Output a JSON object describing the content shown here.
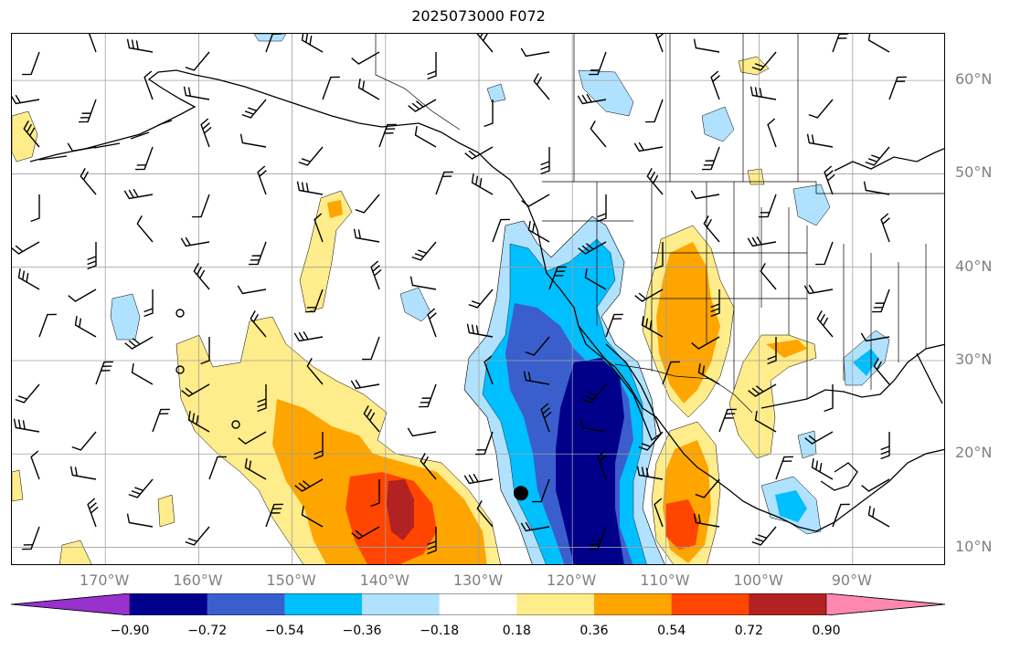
{
  "title": "2025073000 F072",
  "map": {
    "extent": {
      "lon": [
        -180,
        -80
      ],
      "lat": [
        8,
        65
      ]
    },
    "lat_ticks": [
      {
        "value": 60,
        "label": "60°N"
      },
      {
        "value": 50,
        "label": "50°N"
      },
      {
        "value": 40,
        "label": "40°N"
      },
      {
        "value": 30,
        "label": "30°N"
      },
      {
        "value": 20,
        "label": "20°N"
      },
      {
        "value": 10,
        "label": "10°N"
      }
    ],
    "lon_ticks": [
      {
        "value": -170,
        "label": "170°W"
      },
      {
        "value": -160,
        "label": "160°W"
      },
      {
        "value": -150,
        "label": "150°W"
      },
      {
        "value": -140,
        "label": "140°W"
      },
      {
        "value": -130,
        "label": "130°W"
      },
      {
        "value": -120,
        "label": "120°W"
      },
      {
        "value": -110,
        "label": "110°W"
      },
      {
        "value": -100,
        "label": "100°W"
      },
      {
        "value": -90,
        "label": "90°W"
      }
    ],
    "gridlines": true,
    "storm_marker_position": {
      "lon": -125.5,
      "lat": 15.8
    }
  },
  "colorbar": {
    "ticks": [
      "−0.90",
      "−0.72",
      "−0.54",
      "−0.36",
      "−0.18",
      "0.18",
      "0.36",
      "0.54",
      "0.72",
      "0.90"
    ],
    "colors": [
      "#9932cc",
      "#00008b",
      "#3a5fcd",
      "#00bfff",
      "#b0e2ff",
      "#ffffff",
      "#ffec8b",
      "#ffa500",
      "#ff4500",
      "#b22222",
      "#ff88b0"
    ]
  }
}
